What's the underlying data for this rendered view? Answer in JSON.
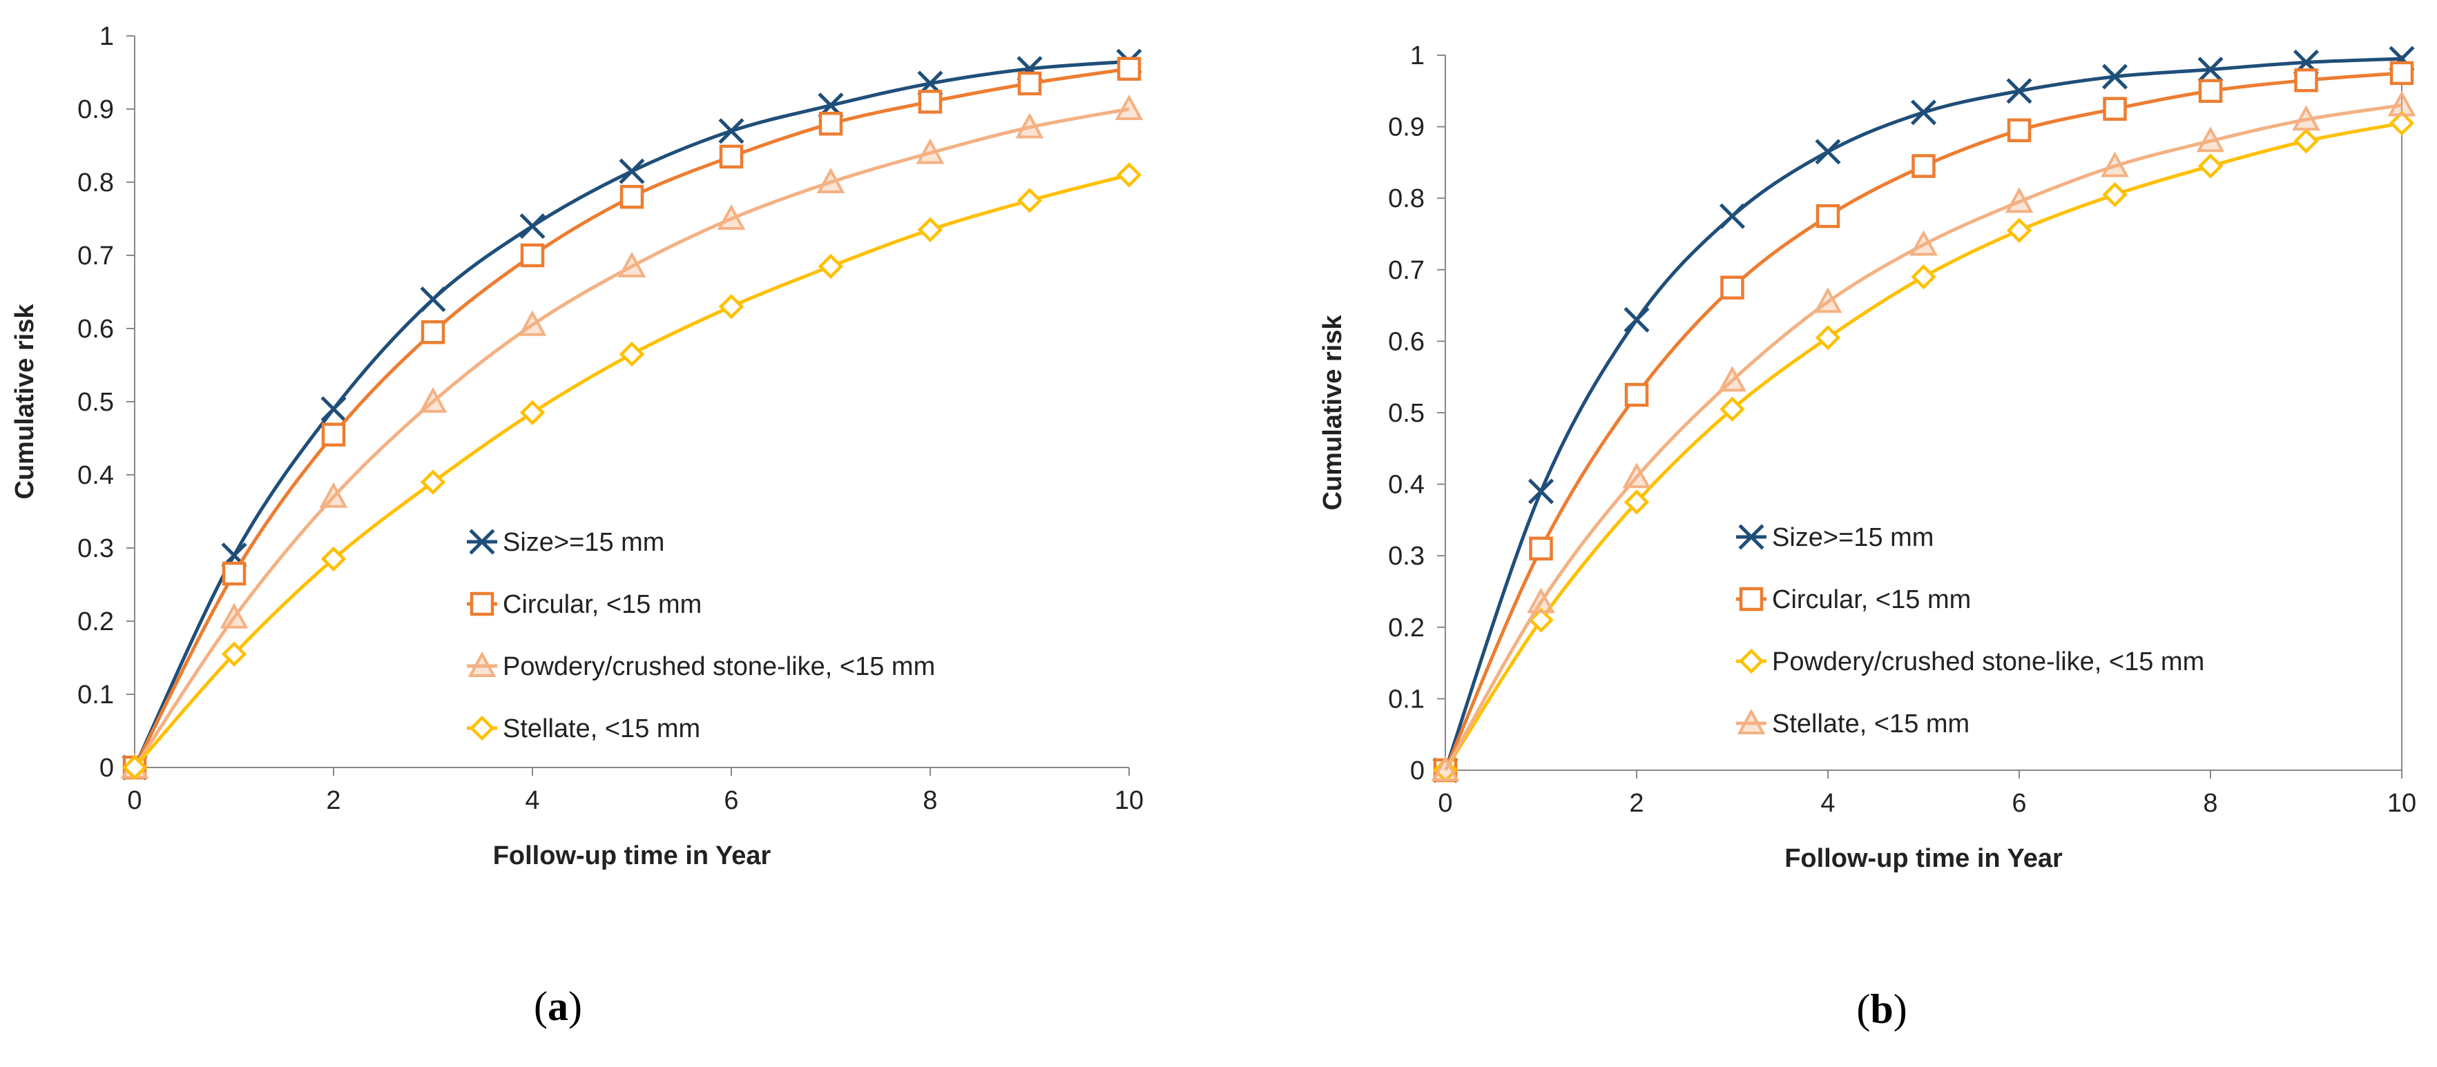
{
  "chart_data": [
    {
      "id": "a",
      "type": "line",
      "panel_label": "a",
      "xlabel": "Follow-up time in Year",
      "ylabel": "Cumulative risk",
      "x": [
        0,
        1,
        2,
        3,
        4,
        5,
        6,
        7,
        8,
        9,
        10
      ],
      "xlim": [
        0,
        10
      ],
      "ylim": [
        0,
        1
      ],
      "x_ticks": [
        "0",
        "2",
        "4",
        "6",
        "8",
        "10"
      ],
      "y_ticks": [
        "0",
        "0.1",
        "0.2",
        "0.3",
        "0.4",
        "0.5",
        "0.6",
        "0.7",
        "0.8",
        "0.9",
        "1"
      ],
      "legend_position": "center-right",
      "series": [
        {
          "name": "Size>=15 mm",
          "marker": "x",
          "color": "#1f4e79",
          "values": [
            0,
            0.29,
            0.49,
            0.64,
            0.74,
            0.815,
            0.87,
            0.905,
            0.935,
            0.955,
            0.965
          ]
        },
        {
          "name": "Circular, <15 mm",
          "marker": "square",
          "color": "#ed7d31",
          "values": [
            0,
            0.265,
            0.455,
            0.595,
            0.7,
            0.78,
            0.835,
            0.88,
            0.91,
            0.935,
            0.955
          ]
        },
        {
          "name": "Powdery/crushed stone-like, <15 mm",
          "marker": "triangle",
          "color": "#f4b183",
          "values": [
            0,
            0.205,
            0.37,
            0.5,
            0.605,
            0.685,
            0.75,
            0.8,
            0.84,
            0.875,
            0.9
          ]
        },
        {
          "name": "Stellate, <15 mm",
          "marker": "diamond",
          "color": "#ffc000",
          "values": [
            0,
            0.155,
            0.285,
            0.39,
            0.485,
            0.565,
            0.63,
            0.685,
            0.735,
            0.775,
            0.81
          ]
        }
      ]
    },
    {
      "id": "b",
      "type": "line",
      "panel_label": "b",
      "xlabel": "Follow-up time in Year",
      "ylabel": "Cumulative risk",
      "x": [
        0,
        1,
        2,
        3,
        4,
        5,
        6,
        7,
        8,
        9,
        10
      ],
      "xlim": [
        0,
        10
      ],
      "ylim": [
        0,
        1
      ],
      "x_ticks": [
        "0",
        "2",
        "4",
        "6",
        "8",
        "10"
      ],
      "y_ticks": [
        "0",
        "0.1",
        "0.2",
        "0.3",
        "0.4",
        "0.5",
        "0.6",
        "0.7",
        "0.8",
        "0.9",
        "1"
      ],
      "legend_position": "center-right",
      "series": [
        {
          "name": "Size>=15 mm",
          "marker": "x",
          "color": "#1f4e79",
          "values": [
            0,
            0.39,
            0.63,
            0.775,
            0.865,
            0.92,
            0.95,
            0.97,
            0.98,
            0.99,
            0.995
          ]
        },
        {
          "name": "Circular, <15 mm",
          "marker": "square",
          "color": "#ed7d31",
          "values": [
            0,
            0.31,
            0.525,
            0.675,
            0.775,
            0.845,
            0.895,
            0.925,
            0.95,
            0.965,
            0.975
          ]
        },
        {
          "name": "Powdery/crushed stone-like, <15 mm",
          "marker": "diamond",
          "color": "#ffc000",
          "values": [
            0,
            0.21,
            0.375,
            0.505,
            0.605,
            0.69,
            0.755,
            0.805,
            0.845,
            0.88,
            0.905
          ]
        },
        {
          "name": "Stellate, <15 mm",
          "marker": "triangle",
          "color": "#f4b183",
          "values": [
            0,
            0.235,
            0.41,
            0.545,
            0.655,
            0.735,
            0.795,
            0.845,
            0.88,
            0.91,
            0.93
          ]
        }
      ]
    }
  ]
}
